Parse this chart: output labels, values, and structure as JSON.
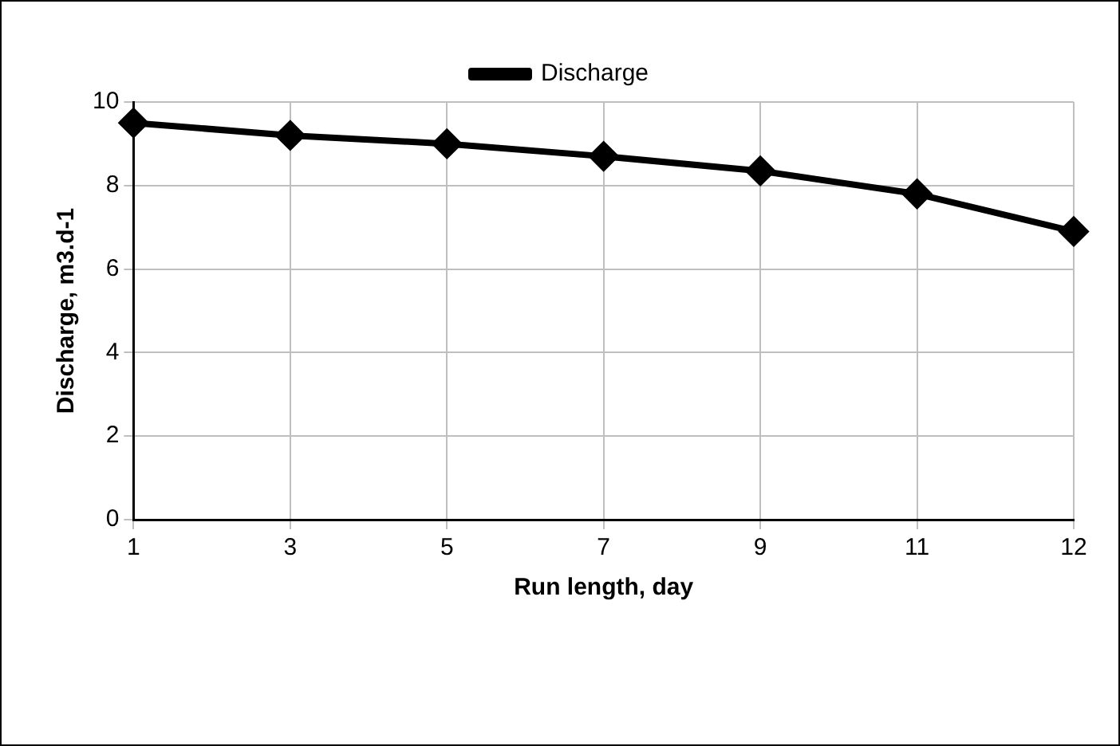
{
  "chart_data": {
    "type": "line",
    "xlabel": "Run length, day",
    "ylabel": "Discharge, m3.d-1",
    "categories": [
      "1",
      "3",
      "5",
      "7",
      "9",
      "11",
      "12"
    ],
    "series": [
      {
        "name": "Discharge",
        "color": "#000000",
        "values": [
          9.5,
          9.2,
          9.0,
          8.7,
          8.35,
          7.8,
          6.9
        ]
      }
    ],
    "ylim": [
      0,
      10
    ],
    "yticks": [
      0,
      2,
      4,
      6,
      8,
      10
    ],
    "grid": true,
    "legend": "top",
    "marker": "diamond",
    "line_style": "solid"
  }
}
